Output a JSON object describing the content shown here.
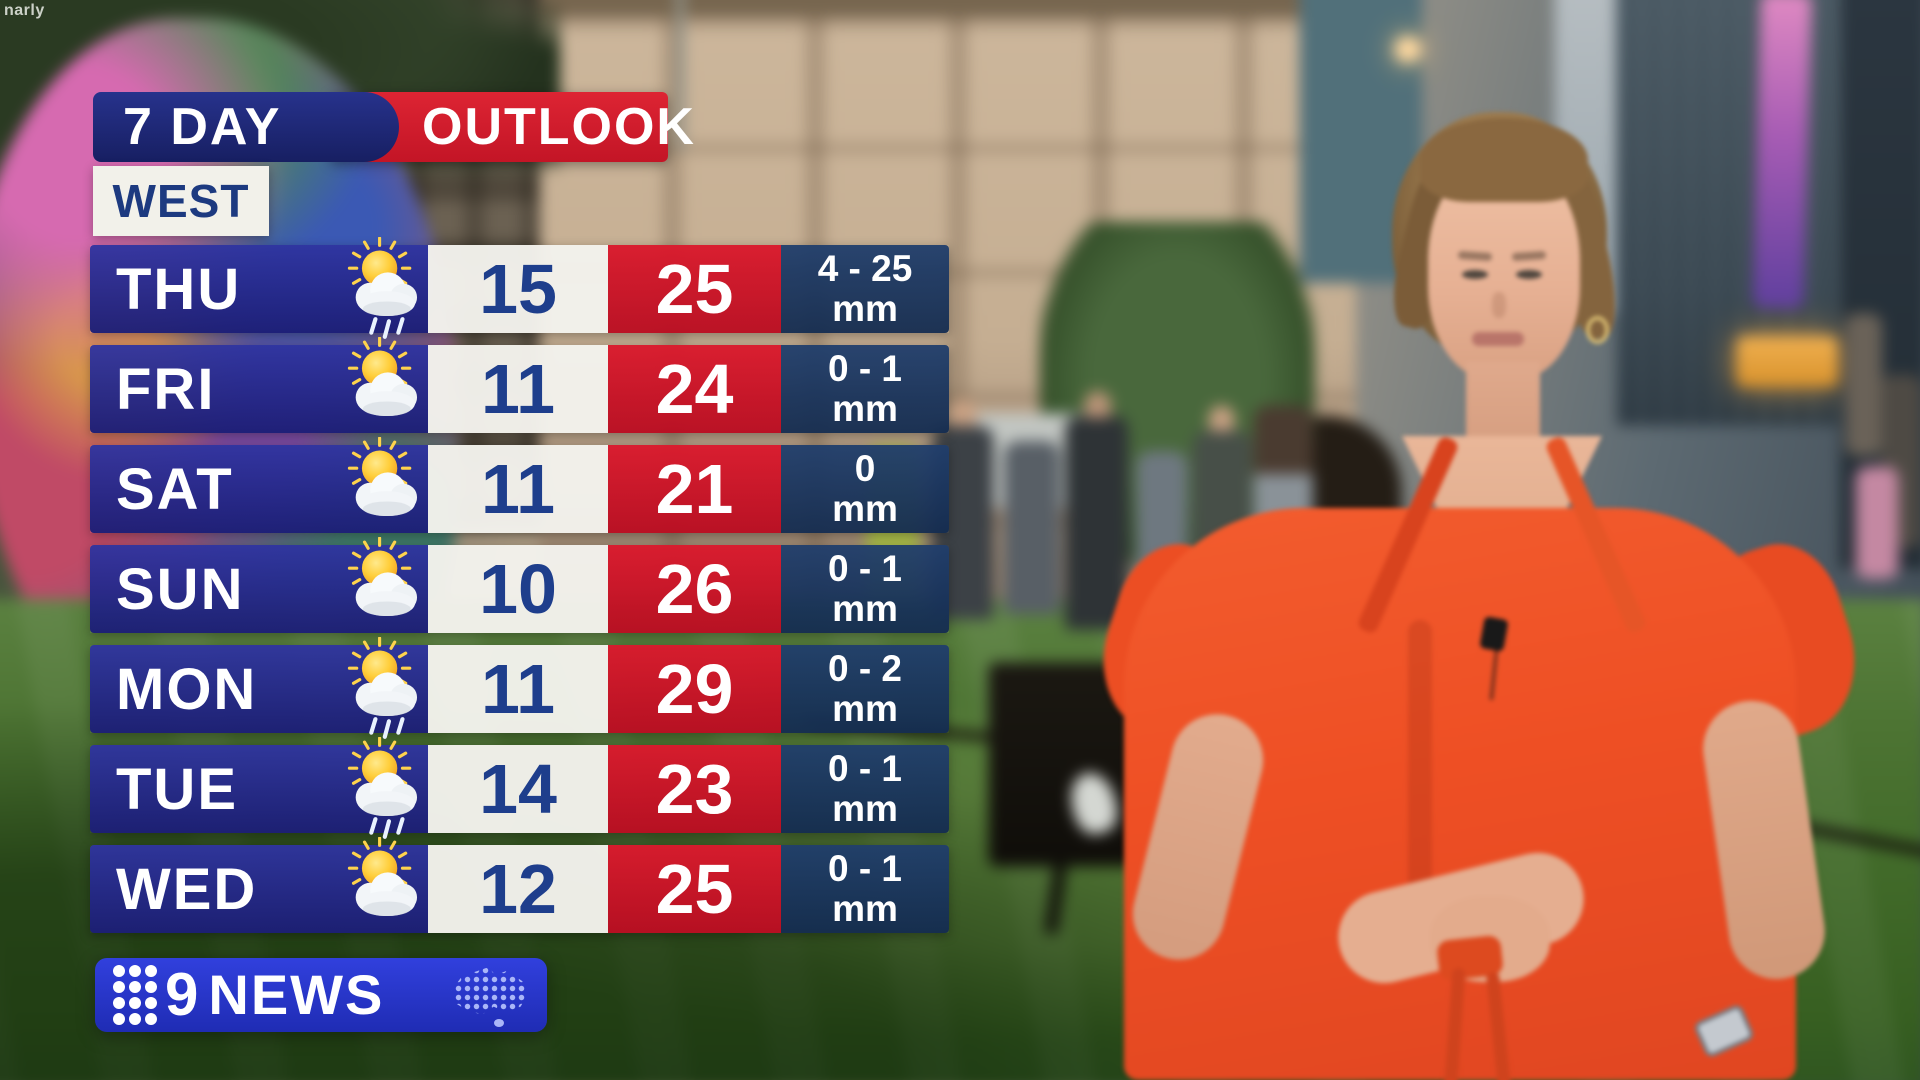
{
  "watermark": "narly",
  "header": {
    "title_left": "7 DAY",
    "title_right": "OUTLOOK",
    "region": "WEST"
  },
  "forecast": {
    "rows": [
      {
        "day": "THU",
        "icon": "sun-cloud-rain",
        "low": "15",
        "high": "25",
        "rain": "4 - 25",
        "rain_unit": "mm"
      },
      {
        "day": "FRI",
        "icon": "sun-cloud",
        "low": "11",
        "high": "24",
        "rain": "0 - 1",
        "rain_unit": "mm"
      },
      {
        "day": "SAT",
        "icon": "sun-cloud",
        "low": "11",
        "high": "21",
        "rain": "0",
        "rain_unit": "mm"
      },
      {
        "day": "SUN",
        "icon": "sun-cloud",
        "low": "10",
        "high": "26",
        "rain": "0 - 1",
        "rain_unit": "mm"
      },
      {
        "day": "MON",
        "icon": "sun-cloud-rain",
        "low": "11",
        "high": "29",
        "rain": "0 - 2",
        "rain_unit": "mm"
      },
      {
        "day": "TUE",
        "icon": "sun-cloud-rain",
        "low": "14",
        "high": "23",
        "rain": "0 - 1",
        "rain_unit": "mm"
      },
      {
        "day": "WED",
        "icon": "sun-cloud",
        "low": "12",
        "high": "25",
        "rain": "0 - 1",
        "rain_unit": "mm"
      }
    ]
  },
  "logo": {
    "network_number": "9",
    "network_name": "NEWS"
  },
  "colors": {
    "day_blue": "#232a82",
    "low_bg": "#f3f2ec",
    "low_text": "#1e3e8c",
    "high_red": "#d01528",
    "rain_navy": "#1e3c64",
    "header_blue": "#1d2878",
    "header_red": "#d51f2e",
    "west_bg": "#f2f1ea",
    "logo_blue": "#2433cf",
    "dress_orange": "#ee4f24"
  },
  "chart_data": {
    "type": "table",
    "title": "7 DAY OUTLOOK",
    "region": "WEST",
    "columns": [
      "day",
      "condition",
      "low_c",
      "high_c",
      "rainfall_mm"
    ],
    "rows": [
      [
        "THU",
        "partly cloudy with showers",
        15,
        25,
        "4-25"
      ],
      [
        "FRI",
        "partly cloudy",
        11,
        24,
        "0-1"
      ],
      [
        "SAT",
        "partly cloudy",
        11,
        21,
        "0"
      ],
      [
        "SUN",
        "partly cloudy",
        10,
        26,
        "0-1"
      ],
      [
        "MON",
        "partly cloudy with showers",
        11,
        29,
        "0-2"
      ],
      [
        "TUE",
        "partly cloudy with showers",
        14,
        23,
        "0-1"
      ],
      [
        "WED",
        "partly cloudy",
        12,
        25,
        "0-1"
      ]
    ]
  }
}
